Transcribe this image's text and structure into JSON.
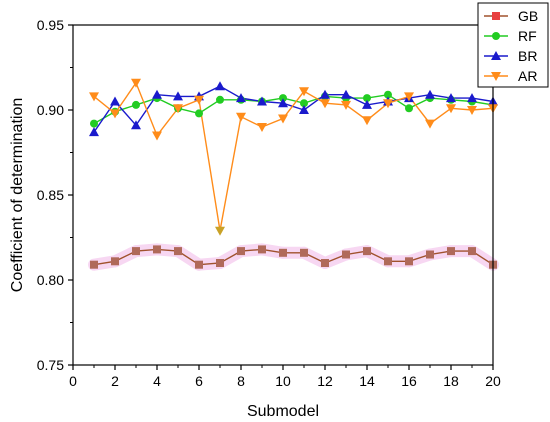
{
  "chart_data": {
    "type": "line",
    "xlabel": "Submodel",
    "ylabel": "Coefficient of determination",
    "xlim": [
      0,
      20
    ],
    "ylim": [
      0.75,
      0.95
    ],
    "xticks": [
      0,
      2,
      4,
      6,
      8,
      10,
      12,
      14,
      16,
      18,
      20
    ],
    "yticks": [
      0.75,
      0.8,
      0.85,
      0.9,
      0.95
    ],
    "ytick_labels": [
      "0.75",
      "0.80",
      "0.85",
      "0.90",
      "0.95"
    ],
    "grid": false,
    "legend_position": "top-right",
    "x": [
      1,
      2,
      3,
      4,
      5,
      6,
      7,
      8,
      9,
      10,
      11,
      12,
      13,
      14,
      15,
      16,
      17,
      18,
      19,
      20
    ],
    "series": [
      {
        "name": "GB",
        "color": "#e84040",
        "line_color": "#a0522d",
        "marker": "square",
        "values": [
          0.809,
          0.811,
          0.817,
          0.818,
          0.817,
          0.809,
          0.81,
          0.817,
          0.818,
          0.816,
          0.816,
          0.81,
          0.815,
          0.817,
          0.811,
          0.811,
          0.815,
          0.817,
          0.817,
          0.809
        ]
      },
      {
        "name": "RF",
        "color": "#22cc22",
        "line_color": "#22cc22",
        "marker": "circle",
        "values": [
          0.892,
          0.899,
          0.903,
          0.907,
          0.901,
          0.898,
          0.906,
          0.906,
          0.905,
          0.907,
          0.904,
          0.908,
          0.907,
          0.907,
          0.909,
          0.901,
          0.907,
          0.906,
          0.905,
          0.903
        ]
      },
      {
        "name": "BR",
        "color": "#1a1acc",
        "line_color": "#1a1acc",
        "marker": "triangle-up",
        "values": [
          0.887,
          0.905,
          0.891,
          0.909,
          0.908,
          0.908,
          0.914,
          0.907,
          0.905,
          0.904,
          0.9,
          0.909,
          0.909,
          0.903,
          0.905,
          0.907,
          0.909,
          0.907,
          0.907,
          0.905
        ]
      },
      {
        "name": "AR",
        "color": "#ff8c1a",
        "line_color": "#ff8c1a",
        "marker": "triangle-down",
        "values": [
          0.908,
          0.898,
          0.916,
          0.885,
          0.901,
          0.906,
          0.829,
          0.896,
          0.89,
          0.895,
          0.911,
          0.904,
          0.903,
          0.894,
          0.904,
          0.908,
          0.892,
          0.901,
          0.9,
          0.901
        ]
      }
    ]
  }
}
